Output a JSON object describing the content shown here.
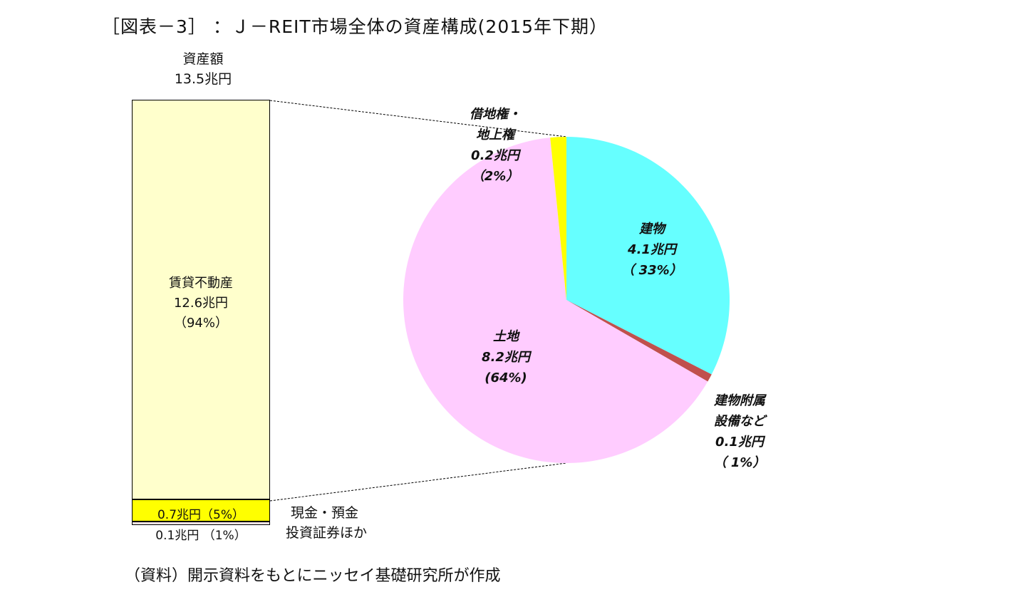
{
  "title": "［図表－3］ ：Ｊ－REIT市場全体の資産構成(2015年下期）",
  "source_note": "（資料）開示資料をもとにニッセイ基礎研究所が作成",
  "colors": {
    "property_bar": "#ffffcc",
    "cash_bar": "#ffff00",
    "securities_bar": "#f4e4e4",
    "buildings": "#66ffff",
    "equipment": "#c0504d",
    "land": "#ffccff",
    "leasehold": "#ffff00"
  },
  "bar": {
    "header_line1": "資産額",
    "header_line2": "13.5兆円",
    "property_line1": "賃貸不動産",
    "property_line2": "12.6兆円",
    "property_line3": "（94%）",
    "cash_label": "0.7兆円（5%）",
    "securities_label": "0.1兆円 （1%）",
    "cash_side_line1": "現金・預金",
    "cash_side_line2": "投資証券ほか"
  },
  "pie_labels": {
    "buildings": [
      "建物",
      "4.1兆円",
      "（ 33%）"
    ],
    "land": [
      "土地",
      "8.2兆円",
      "(64%)"
    ],
    "leasehold": [
      "借地権・",
      "地上権",
      "0.2兆円",
      "（2%）"
    ],
    "equipment": [
      "建物附属",
      "設備など",
      "0.1兆円",
      "（ 1%）"
    ]
  },
  "chart_data": [
    {
      "type": "bar",
      "stacked": true,
      "title": "資産額 13.5兆円",
      "unit": "兆円",
      "categories": [
        "資産額"
      ],
      "series": [
        {
          "name": "賃貸不動産",
          "values": [
            12.6
          ],
          "percent": 94
        },
        {
          "name": "現金・預金",
          "values": [
            0.7
          ],
          "percent": 5
        },
        {
          "name": "投資証券ほか",
          "values": [
            0.1
          ],
          "percent": 1
        }
      ]
    },
    {
      "type": "pie",
      "unit": "兆円",
      "slices": [
        {
          "name": "建物",
          "value": 4.1,
          "percent": 33
        },
        {
          "name": "建物附属設備など",
          "value": 0.1,
          "percent": 1
        },
        {
          "name": "土地",
          "value": 8.2,
          "percent": 64
        },
        {
          "name": "借地権・地上権",
          "value": 0.2,
          "percent": 2
        }
      ]
    }
  ]
}
